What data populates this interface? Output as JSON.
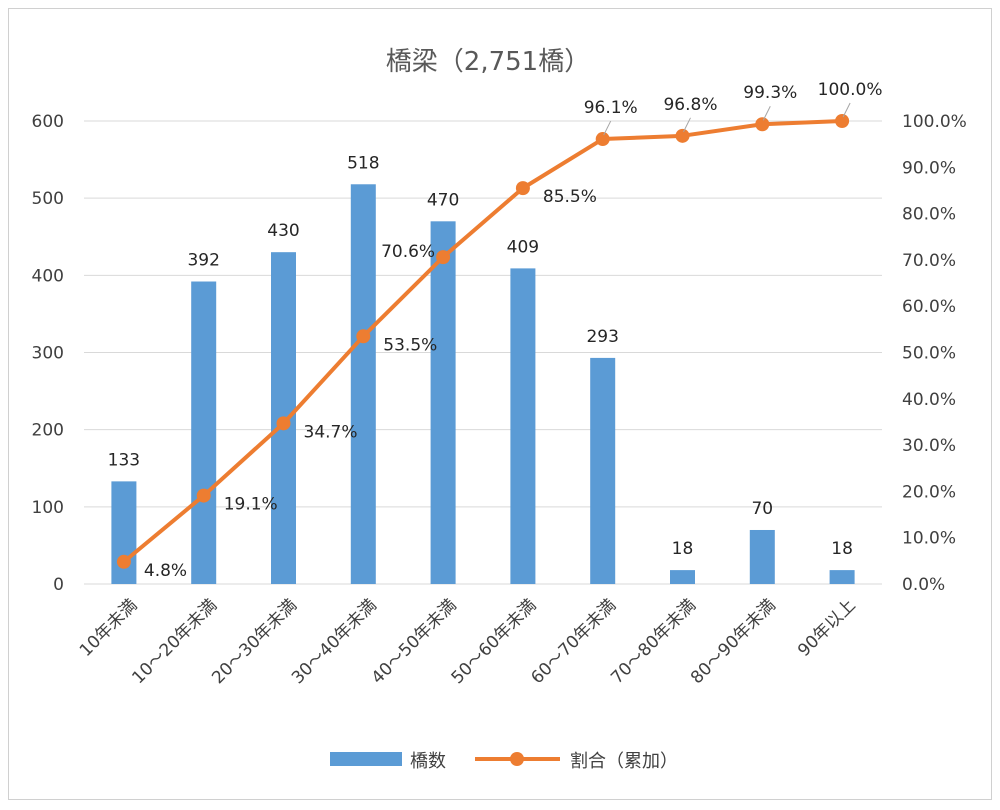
{
  "chart_data": {
    "type": "bar",
    "title": "橋梁（2,751橋）",
    "categories": [
      "10年未満",
      "10～20年未満",
      "20～30年未満",
      "30～40年未満",
      "40～50年未満",
      "50～60年未満",
      "60～70年未満",
      "70～80年未満",
      "80～90年未満",
      "90年以上"
    ],
    "series": [
      {
        "name": "橋数",
        "type": "bar",
        "axis": "left",
        "color": "#5b9bd5",
        "values": [
          133,
          392,
          430,
          518,
          470,
          409,
          293,
          18,
          70,
          18
        ],
        "labels": [
          "133",
          "392",
          "430",
          "518",
          "470",
          "409",
          "293",
          "18",
          "70",
          "18"
        ]
      },
      {
        "name": "割合（累加）",
        "type": "line",
        "axis": "right",
        "color": "#ed7d31",
        "values": [
          4.8,
          19.1,
          34.7,
          53.5,
          70.6,
          85.5,
          96.1,
          96.8,
          99.3,
          100.0
        ],
        "labels": [
          "4.8%",
          "19.1%",
          "34.7%",
          "53.5%",
          "70.6%",
          "85.5%",
          "96.1%",
          "96.8%",
          "99.3%",
          "100.0%"
        ]
      }
    ],
    "y_left": {
      "min": 0,
      "max": 600,
      "ticks": [
        "0",
        "100",
        "200",
        "300",
        "400",
        "500",
        "600"
      ]
    },
    "y_right": {
      "min": 0,
      "max": 100,
      "ticks": [
        "0.0%",
        "10.0%",
        "20.0%",
        "30.0%",
        "40.0%",
        "50.0%",
        "60.0%",
        "70.0%",
        "80.0%",
        "90.0%",
        "100.0%"
      ]
    },
    "grid": true,
    "legend_position": "bottom"
  }
}
